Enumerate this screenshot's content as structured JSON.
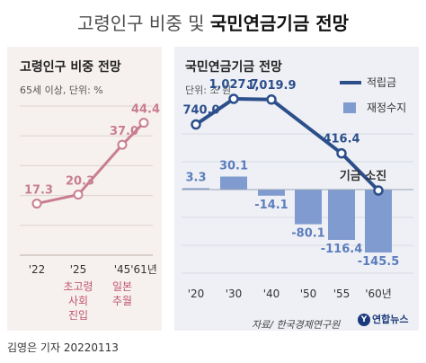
{
  "title": {
    "light": "고령인구 비중 및",
    "bold": "국민연금기금 전망"
  },
  "chart_data": [
    {
      "type": "line",
      "title": "고령인구 비중 전망",
      "subtitle": "65세 이상, 단위: %",
      "categories": [
        "'22",
        "'25",
        "'45",
        "'61년"
      ],
      "values": [
        17.3,
        20.3,
        37.0,
        44.4
      ],
      "value_labels": [
        "17.3",
        "20.3",
        "37.0",
        "44.4"
      ],
      "category_notes": [
        {
          "category": "'25",
          "lines": [
            "초고령",
            "사회",
            "진입"
          ]
        },
        {
          "category": "'45",
          "lines": [
            "일본",
            "추월"
          ]
        }
      ],
      "ylim": [
        0,
        50
      ],
      "grid": true,
      "line_color": "#c97e8f"
    },
    {
      "type": "bar+line",
      "title": "국민연금기금 전망",
      "subtitle": "단위: 조 원",
      "categories": [
        "'20",
        "'30",
        "'40",
        "'50",
        "'55",
        "'60년"
      ],
      "series": [
        {
          "name": "적립금",
          "type": "line",
          "values": [
            740.0,
            1027.7,
            1019.9,
            null,
            416.4,
            0
          ],
          "value_labels": [
            "740.0",
            "1,027.7",
            "1,019.9",
            "",
            "416.4",
            ""
          ],
          "color": "#2c4f8c"
        },
        {
          "name": "재정수지",
          "type": "bar",
          "values": [
            3.3,
            30.1,
            -14.1,
            -80.1,
            -116.4,
            -145.5
          ],
          "value_labels": [
            "3.3",
            "30.1",
            "-14.1",
            "-80.1",
            "-116.4",
            "-145.5"
          ],
          "color": "#7f9bcf"
        }
      ],
      "annotations": [
        {
          "category": "'55",
          "text": "기금 소진"
        }
      ],
      "legend_position": "top-right",
      "grid": true
    }
  ],
  "footer": {
    "reporter": "김영은 기자  20220113",
    "source": "자료/ 한국경제연구원",
    "logo": "연합뉴스",
    "logo_mark": "Y"
  }
}
